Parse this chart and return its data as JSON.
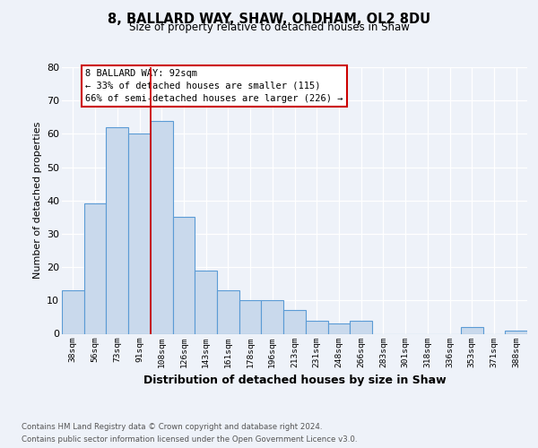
{
  "title": "8, BALLARD WAY, SHAW, OLDHAM, OL2 8DU",
  "subtitle": "Size of property relative to detached houses in Shaw",
  "xlabel": "Distribution of detached houses by size in Shaw",
  "ylabel": "Number of detached properties",
  "bar_labels": [
    "38sqm",
    "56sqm",
    "73sqm",
    "91sqm",
    "108sqm",
    "126sqm",
    "143sqm",
    "161sqm",
    "178sqm",
    "196sqm",
    "213sqm",
    "231sqm",
    "248sqm",
    "266sqm",
    "283sqm",
    "301sqm",
    "318sqm",
    "336sqm",
    "353sqm",
    "371sqm",
    "388sqm"
  ],
  "bar_values": [
    13,
    39,
    62,
    60,
    64,
    35,
    19,
    13,
    10,
    10,
    7,
    4,
    3,
    4,
    0,
    0,
    0,
    0,
    2,
    0,
    1
  ],
  "bar_color": "#c9d9ec",
  "bar_edge_color": "#5b9bd5",
  "background_color": "#eef2f9",
  "grid_color": "#ffffff",
  "property_line_x": 3.5,
  "annotation_line1": "8 BALLARD WAY: 92sqm",
  "annotation_line2": "← 33% of detached houses are smaller (115)",
  "annotation_line3": "66% of semi-detached houses are larger (226) →",
  "annotation_box_color": "#ffffff",
  "annotation_box_edge_color": "#cc0000",
  "vline_color": "#cc0000",
  "ylim": [
    0,
    80
  ],
  "yticks": [
    0,
    10,
    20,
    30,
    40,
    50,
    60,
    70,
    80
  ],
  "footer_line1": "Contains HM Land Registry data © Crown copyright and database right 2024.",
  "footer_line2": "Contains public sector information licensed under the Open Government Licence v3.0."
}
